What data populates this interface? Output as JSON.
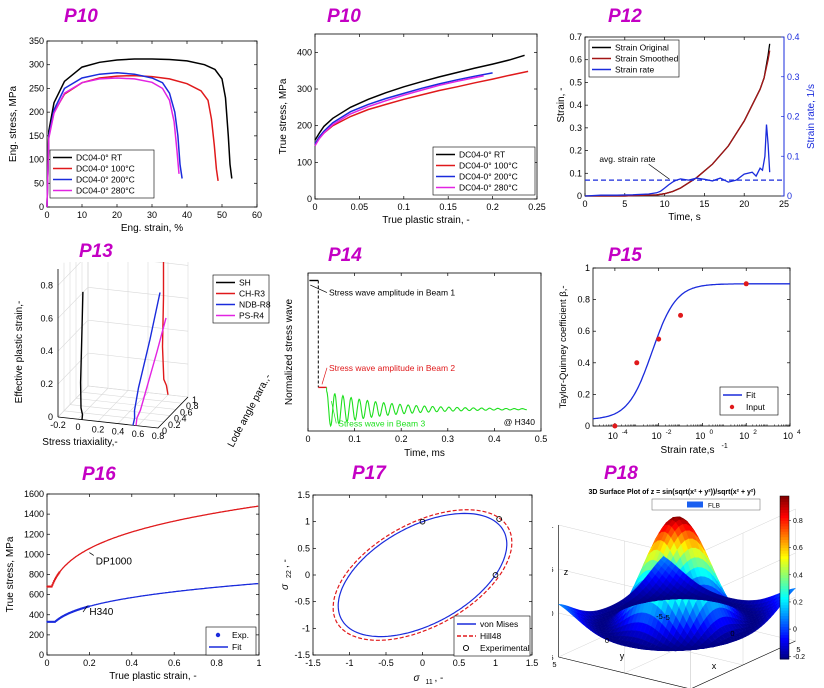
{
  "colors": {
    "black": "#000000",
    "red": "#e0191b",
    "blue": "#1a2bdc",
    "magenta": "#e224e2",
    "green": "#1fe01f",
    "title": "#c400c4"
  },
  "panel_titles": [
    "P10",
    "P10",
    "P12",
    "P13",
    "P14",
    "P15",
    "P16",
    "P17",
    "P18"
  ],
  "chart_data": [
    {
      "id": "eng",
      "type": "line",
      "title": "P10",
      "xlabel": "Eng. strain, %",
      "ylabel": "Eng. stress, MPa",
      "xlim": [
        0,
        60
      ],
      "ylim": [
        0,
        350
      ],
      "xticks": [
        0,
        10,
        20,
        30,
        40,
        50,
        60
      ],
      "yticks": [
        0,
        50,
        100,
        150,
        200,
        250,
        300,
        350
      ],
      "grid": false,
      "legend": "bottom-left",
      "series": [
        {
          "name": "DC04-0° RT",
          "color": "black",
          "x": [
            0,
            0.5,
            2,
            5,
            10,
            15,
            20,
            25,
            30,
            35,
            40,
            45,
            48,
            50,
            51,
            51.8,
            52.3,
            52.8
          ],
          "y": [
            0,
            160,
            220,
            265,
            295,
            305,
            310,
            312,
            312,
            311,
            308,
            300,
            290,
            270,
            230,
            150,
            90,
            60
          ]
        },
        {
          "name": "DC04-0° 100°C",
          "color": "red",
          "x": [
            0,
            0.5,
            2,
            5,
            10,
            15,
            20,
            25,
            30,
            35,
            40,
            44,
            46,
            47,
            47.8,
            48.4,
            48.9
          ],
          "y": [
            0,
            150,
            200,
            238,
            262,
            272,
            276,
            277,
            275,
            270,
            260,
            245,
            225,
            185,
            130,
            80,
            55
          ]
        },
        {
          "name": "DC04-0° 200°C",
          "color": "blue",
          "x": [
            0,
            0.5,
            2,
            5,
            10,
            15,
            20,
            25,
            30,
            33,
            35,
            36.5,
            37.4,
            38,
            38.6
          ],
          "y": [
            0,
            150,
            205,
            250,
            272,
            280,
            283,
            280,
            272,
            262,
            240,
            200,
            150,
            90,
            60
          ]
        },
        {
          "name": "DC04-0° 280°C",
          "color": "magenta",
          "x": [
            0,
            0.5,
            2,
            5,
            10,
            15,
            20,
            25,
            30,
            33,
            35,
            36.3,
            37.1,
            37.7
          ],
          "y": [
            0,
            145,
            198,
            240,
            262,
            270,
            272,
            270,
            263,
            250,
            225,
            180,
            120,
            70
          ]
        }
      ]
    },
    {
      "id": "true",
      "type": "line",
      "title": "P10",
      "xlabel": "True plastic strain, -",
      "ylabel": "True stress, MPa",
      "xlim": [
        0,
        0.25
      ],
      "ylim": [
        0,
        450
      ],
      "xticks": [
        0,
        0.05,
        0.1,
        0.15,
        0.2,
        0.25
      ],
      "yticks": [
        0,
        100,
        200,
        300,
        400
      ],
      "xtick_labels": [
        "0",
        "0.05",
        "0.1",
        "0.15",
        "0.2",
        "0.25"
      ],
      "grid": false,
      "legend": "bottom-right",
      "series": [
        {
          "name": "DC04-0° RT",
          "color": "black",
          "x": [
            0,
            0.005,
            0.01,
            0.02,
            0.04,
            0.06,
            0.08,
            0.1,
            0.12,
            0.14,
            0.16,
            0.18,
            0.2,
            0.22,
            0.236
          ],
          "y": [
            160,
            180,
            198,
            220,
            250,
            272,
            290,
            306,
            320,
            333,
            345,
            357,
            368,
            380,
            392
          ]
        },
        {
          "name": "DC04-0° 100°C",
          "color": "red",
          "x": [
            0,
            0.005,
            0.01,
            0.02,
            0.04,
            0.06,
            0.08,
            0.1,
            0.12,
            0.14,
            0.16,
            0.18,
            0.2,
            0.22,
            0.24
          ],
          "y": [
            150,
            166,
            180,
            200,
            225,
            244,
            258,
            272,
            284,
            296,
            306,
            317,
            327,
            338,
            348
          ]
        },
        {
          "name": "DC04-0° 200°C",
          "color": "blue",
          "x": [
            0,
            0.005,
            0.01,
            0.02,
            0.04,
            0.06,
            0.08,
            0.1,
            0.12,
            0.14,
            0.16,
            0.18,
            0.2
          ],
          "y": [
            150,
            170,
            185,
            208,
            238,
            258,
            274,
            288,
            302,
            314,
            325,
            335,
            344
          ]
        },
        {
          "name": "DC04-0° 280°C",
          "color": "magenta",
          "x": [
            0,
            0.005,
            0.01,
            0.02,
            0.04,
            0.06,
            0.08,
            0.1,
            0.12,
            0.14,
            0.16,
            0.18,
            0.19
          ],
          "y": [
            145,
            165,
            180,
            203,
            232,
            252,
            268,
            283,
            297,
            310,
            321,
            331,
            336
          ]
        }
      ]
    },
    {
      "id": "rate",
      "type": "line",
      "title": "P12",
      "xlabel": "Time, s",
      "ylabel": "Strain, -",
      "y2label": "Strain rate, 1/s",
      "xlim": [
        0,
        25
      ],
      "ylim": [
        0,
        0.7
      ],
      "y2lim": [
        0,
        0.4
      ],
      "xticks": [
        0,
        5,
        10,
        15,
        20,
        25
      ],
      "yticks": [
        0,
        0.1,
        0.2,
        0.3,
        0.4,
        0.5,
        0.6,
        0.7
      ],
      "ytick_labels": [
        "0",
        "0.1",
        "0.2",
        "0.3",
        "0.4",
        "0.5",
        "0.6",
        "0.7"
      ],
      "y2ticks": [
        0,
        0.1,
        0.2,
        0.3,
        0.4
      ],
      "y2tick_labels": [
        "0",
        "0.1",
        "0.2",
        "0.3",
        "0.4"
      ],
      "grid": false,
      "legend": "top-left",
      "annotation": "avg. strain rate",
      "avg_rate": 0.04,
      "series": [
        {
          "name": "Strain Original",
          "color": "black",
          "axis": "left",
          "x": [
            0,
            5,
            9,
            10,
            11,
            12,
            14,
            16,
            18,
            20,
            21,
            22,
            22.5,
            23,
            23.2
          ],
          "y": [
            0,
            0,
            0.005,
            0.01,
            0.02,
            0.035,
            0.08,
            0.14,
            0.22,
            0.33,
            0.4,
            0.47,
            0.52,
            0.62,
            0.67
          ]
        },
        {
          "name": "Strain Smoothed",
          "color": "#a31515",
          "axis": "left",
          "x": [
            0,
            5,
            9,
            10,
            11,
            12,
            14,
            16,
            18,
            20,
            21,
            22,
            22.5,
            23,
            23.2
          ],
          "y": [
            0,
            0,
            0.005,
            0.01,
            0.02,
            0.035,
            0.08,
            0.14,
            0.22,
            0.33,
            0.4,
            0.47,
            0.52,
            0.6,
            0.64
          ]
        },
        {
          "name": "Strain rate",
          "color": "blue",
          "axis": "right",
          "x": [
            0,
            2,
            4,
            6,
            8,
            9,
            9.5,
            10,
            10.5,
            11,
            11.5,
            12,
            13,
            14,
            15,
            16,
            17,
            18,
            19,
            20,
            21,
            21.5,
            22,
            22.3,
            22.6,
            22.8,
            23,
            23.2
          ],
          "y": [
            0,
            0.002,
            0.002,
            0.003,
            0.005,
            0.008,
            0.012,
            0.02,
            0.028,
            0.035,
            0.04,
            0.043,
            0.04,
            0.045,
            0.042,
            0.038,
            0.045,
            0.035,
            0.04,
            0.055,
            0.06,
            0.05,
            0.07,
            0.065,
            0.1,
            0.18,
            0.13,
            0.06
          ]
        }
      ]
    },
    {
      "id": "lode",
      "type": "line3d",
      "title": "P13",
      "xlabel": "Stress triaxiality,-",
      "ylabel": "Lode angle para.,-",
      "zlabel": "Effective plastic strain,-",
      "xlim": [
        -0.2,
        0.8
      ],
      "ylim": [
        0,
        1
      ],
      "zlim": [
        0,
        0.9
      ],
      "xticks": [
        -0.2,
        0,
        0.2,
        0.4,
        0.6,
        0.8
      ],
      "xtick_labels": [
        "-0.2",
        "0",
        "0.2",
        "0.4",
        "0.6",
        "0.8"
      ],
      "yticks": [
        0,
        0.2,
        0.4,
        0.6,
        0.8,
        1
      ],
      "ytick_labels": [
        "0",
        "0.2",
        "0.4",
        "0.6",
        "0.8",
        "1"
      ],
      "zticks": [
        0,
        0.2,
        0.4,
        0.6,
        0.8
      ],
      "ztick_labels": [
        "0",
        "0.2",
        "0.4",
        "0.6",
        "0.8"
      ],
      "grid": true,
      "legend": "top-right",
      "series": [
        {
          "name": "SH",
          "color": "black",
          "x": [
            0.04,
            0.03,
            0.0,
            -0.01,
            0.0,
            0.01
          ],
          "y": [
            0.0,
            0.05,
            0.1,
            0.12,
            0.13,
            0.13
          ],
          "z": [
            0.0,
            0.02,
            0.05,
            0.2,
            0.5,
            0.75
          ]
        },
        {
          "name": "CH-R3",
          "color": "red",
          "x": [
            0.6,
            0.59,
            0.57,
            0.56,
            0.57,
            0.57
          ],
          "y": [
            1.0,
            0.98,
            0.96,
            0.95,
            0.95,
            0.95
          ],
          "z": [
            0.0,
            0.06,
            0.1,
            0.3,
            0.6,
            0.92
          ]
        },
        {
          "name": "NDB-R8",
          "color": "blue",
          "x": [
            0.55,
            0.56,
            0.55,
            0.56,
            0.6,
            0.64
          ],
          "y": [
            0.0,
            0.02,
            0.05,
            0.15,
            0.4,
            0.6
          ],
          "z": [
            0.0,
            0.04,
            0.08,
            0.2,
            0.45,
            0.7
          ]
        },
        {
          "name": "PS-R4",
          "color": "magenta",
          "x": [
            0.58,
            0.58,
            0.6,
            0.63,
            0.67,
            0.7
          ],
          "y": [
            0.0,
            0.03,
            0.08,
            0.2,
            0.4,
            0.6
          ],
          "z": [
            0.0,
            0.04,
            0.08,
            0.2,
            0.38,
            0.55
          ]
        }
      ]
    },
    {
      "id": "wave",
      "type": "line",
      "title": "P14",
      "xlabel": "Time, ms",
      "ylabel": "Normalized stress wave",
      "xlim": [
        0,
        0.5
      ],
      "ylim": [
        0,
        1.05
      ],
      "xticks": [
        0,
        0.1,
        0.2,
        0.3,
        0.4,
        0.5
      ],
      "xtick_labels": [
        "0",
        "0.1",
        "0.2",
        "0.3",
        "0.4",
        "0.5"
      ],
      "grid": false,
      "annotations": [
        {
          "text": "Stress wave amplitude in Beam 1",
          "color": "black",
          "x": 0.025,
          "y": 0.98
        },
        {
          "text": "Stress wave amplitude in Beam 2",
          "color": "red",
          "x": 0.025,
          "y": 0.33
        },
        {
          "text": "Stress wave in Beam 3",
          "color": "green",
          "x": 0.05,
          "y": 0.2
        }
      ],
      "note": "@ H340",
      "series": [
        {
          "name": "Beam 1",
          "color": "black",
          "x": [
            0.003,
            0.022
          ],
          "y": [
            1,
            1
          ]
        },
        {
          "name": "Beam 2",
          "color": "red",
          "x": [
            0.022,
            0.04
          ],
          "y": [
            0.29,
            0.29
          ]
        },
        {
          "name": "Beam 3",
          "color": "green",
          "t0": 0.04,
          "t1": 0.47,
          "base": 0.145,
          "amp0": 0.12,
          "period": 0.0175,
          "decay": 0.12
        }
      ]
    },
    {
      "id": "tq",
      "type": "line",
      "title": "P15",
      "xlabel": "Strain rate,s",
      "xlabel_sup": "-1",
      "ylabel": "Taylor-Quinney coefficient β,-",
      "xlim_log": [
        -5,
        4
      ],
      "ylim": [
        0,
        1
      ],
      "xticks_log": [
        -4,
        -2,
        0,
        2,
        4
      ],
      "xtick_bases": [
        "10",
        "10",
        "10",
        "10",
        "10"
      ],
      "xtick_exps": [
        "-4",
        "-2",
        "0",
        "2",
        "4"
      ],
      "yticks": [
        0,
        0.2,
        0.4,
        0.6,
        0.8,
        1
      ],
      "ytick_labels": [
        "0",
        "0.2",
        "0.4",
        "0.6",
        "0.8",
        "1"
      ],
      "grid": false,
      "legend": "bottom-right",
      "fit": {
        "name": "Fit",
        "color": "blue",
        "ymin": 0.04,
        "ymax": 0.9,
        "center": -2.3,
        "width": 0.55
      },
      "input": {
        "name": "Input",
        "color": "red",
        "log_x": [
          -4,
          -3,
          -2,
          -1,
          2
        ],
        "y": [
          0.0,
          0.4,
          0.55,
          0.7,
          0.9
        ]
      }
    },
    {
      "id": "flow",
      "type": "line",
      "title": "P16",
      "xlabel": "True plastic strain, -",
      "ylabel": "True stress, MPa",
      "xlim": [
        0,
        1
      ],
      "ylim": [
        0,
        1600
      ],
      "xticks": [
        0,
        0.2,
        0.4,
        0.6,
        0.8,
        1
      ],
      "xtick_labels": [
        "0",
        "0.2",
        "0.4",
        "0.6",
        "0.8",
        "1"
      ],
      "yticks": [
        0,
        200,
        400,
        600,
        800,
        1000,
        1200,
        1400,
        1600
      ],
      "grid": false,
      "legend": "bottom-right",
      "labels": [
        {
          "text": "DP1000",
          "x": 0.23,
          "y": 900
        },
        {
          "text": "H340",
          "x": 0.2,
          "y": 400
        }
      ],
      "exp_name": "Exp.",
      "fit_name": "Fit",
      "curves": [
        {
          "id": "DP1000",
          "color": "red",
          "sigma0": 680,
          "K": 1480,
          "eps0": 0.002,
          "n": 0.21,
          "exp_to": 0.06
        },
        {
          "id": "H340",
          "color": "blue",
          "sigma0": 330,
          "K": 710,
          "eps0": 0.003,
          "n": 0.24,
          "exp_to": 0.2
        }
      ]
    },
    {
      "id": "yield",
      "type": "line",
      "title": "P17",
      "xlabel": "σ11, -",
      "xlabel_base": "σ",
      "xlabel_sub": "11",
      "xlabel_tail": ", -",
      "ylabel": "σ22, -",
      "ylabel_base": "σ",
      "ylabel_sub": "22",
      "ylabel_tail": ", -",
      "xlim": [
        -1.5,
        1.5
      ],
      "ylim": [
        -1.5,
        1.5
      ],
      "xticks": [
        -1.5,
        -1,
        -0.5,
        0,
        0.5,
        1,
        1.5
      ],
      "xtick_labels": [
        "-1.5",
        "-1",
        "-0.5",
        "0",
        "0.5",
        "1",
        "1.5"
      ],
      "yticks": [
        -1.5,
        -1,
        -0.5,
        0,
        0.5,
        1,
        1.5
      ],
      "ytick_labels": [
        "-1.5",
        "-1",
        "-0.5",
        "0",
        "0.5",
        "1",
        "1.5"
      ],
      "grid": false,
      "legend": "bottom-right",
      "series": [
        {
          "name": "von Mises",
          "color": "blue",
          "dash": false,
          "scale": 1.0
        },
        {
          "name": "Hill48",
          "color": "red",
          "dash": true,
          "scale": 1.06
        },
        {
          "name": "Experimental",
          "marker": "circle",
          "x": [
            0,
            1,
            1.05
          ],
          "y": [
            1,
            0,
            1.05
          ]
        }
      ]
    },
    {
      "id": "surf",
      "type": "surface",
      "title": "P18",
      "plot_title": "3D Surface Plot of z = sin(sqrt(x² + y²))/sqrt(x² + y²)",
      "legend_label": "FLB",
      "xlabel": "x",
      "ylabel": "y",
      "zlabel": "z",
      "xlim": [
        -5,
        5
      ],
      "ylim": [
        -5,
        5
      ],
      "zlim": [
        -0.5,
        1
      ],
      "xticks": [
        -5,
        0,
        5
      ],
      "xtick_labels": [
        "-5",
        "0",
        "5"
      ],
      "yticks": [
        -5,
        0,
        5
      ],
      "ytick_labels": [
        "-5",
        "0",
        "5"
      ],
      "zticks": [
        -0.5,
        0,
        0.5,
        1
      ],
      "ztick_labels": [
        "-0.5",
        "0",
        "0.5",
        "1"
      ],
      "colorbar_ticks": [
        -0.2,
        0,
        0.2,
        0.4,
        0.6,
        0.8
      ],
      "colorbar_tick_labels": [
        "-0.2",
        "0",
        "0.2",
        "0.4",
        "0.6",
        "0.8"
      ],
      "colorbar_range": [
        -0.22,
        0.98
      ],
      "grid_n": 34
    }
  ]
}
